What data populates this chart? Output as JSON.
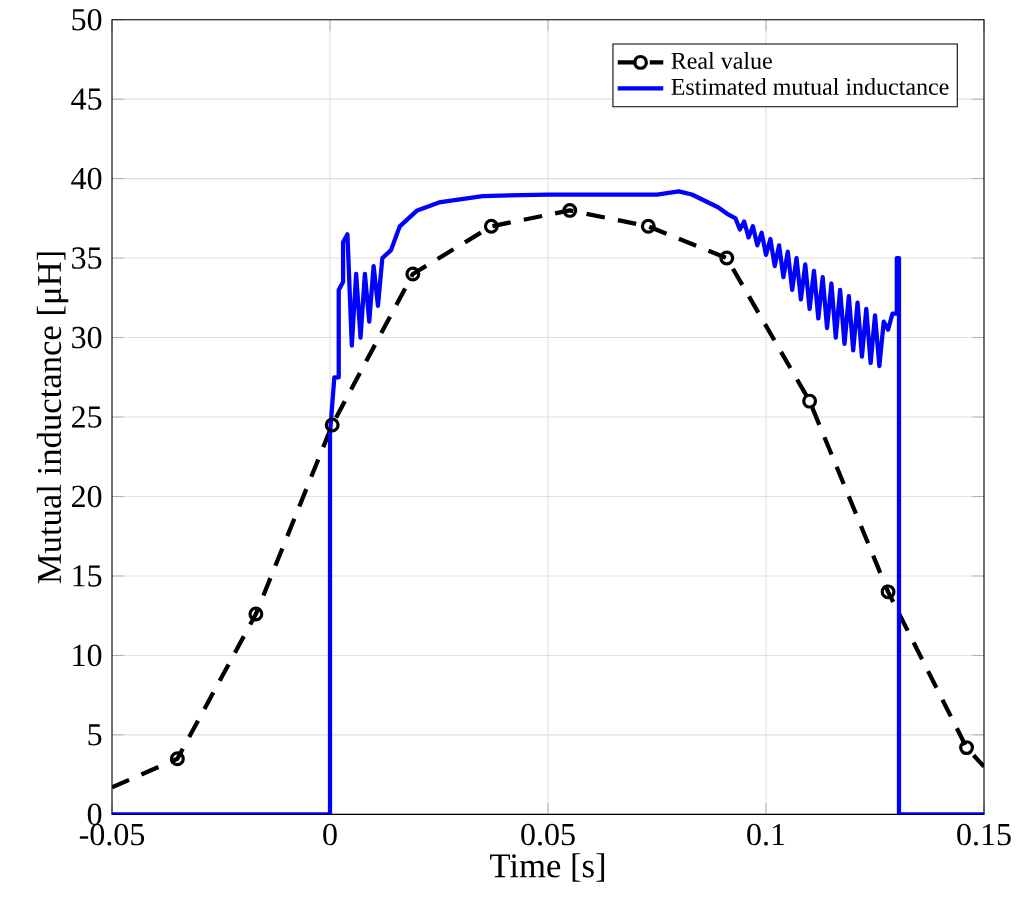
{
  "chart_data": {
    "type": "line",
    "xlabel": "Time [s]",
    "ylabel": "Mutual inductance [μH]",
    "xlim": [
      -0.05,
      0.15
    ],
    "xticks": [
      -0.05,
      0,
      0.05,
      0.1,
      0.15
    ],
    "ylim": [
      0,
      50
    ],
    "yticks": [
      0,
      5,
      10,
      15,
      20,
      25,
      30,
      35,
      40,
      45,
      50
    ],
    "grid": true,
    "legend": "top right",
    "series": [
      {
        "name": "Real value",
        "color": "#000000",
        "line_style": "dashed",
        "marker": "circle",
        "x": [
          -0.05,
          -0.035,
          -0.017,
          0.0005,
          0.019,
          0.037,
          0.055,
          0.073,
          0.091,
          0.11,
          0.128,
          0.146,
          0.15
        ],
        "values": [
          1.7,
          3.5,
          12.6,
          24.5,
          34,
          37,
          38,
          37,
          35,
          26,
          14,
          4.2,
          3
        ]
      },
      {
        "name": "Estimated mutual inductance",
        "color": "#0000ff",
        "line_style": "solid",
        "marker": "none",
        "x": [
          -0.05,
          0,
          0,
          0.001,
          0.002,
          0.002,
          0.003,
          0.003,
          0.004,
          0.005,
          0.006,
          0.007,
          0.008,
          0.009,
          0.01,
          0.011,
          0.012,
          0.014,
          0.016,
          0.018,
          0.02,
          0.025,
          0.035,
          0.05,
          0.075,
          0.08,
          0.083,
          0.086,
          0.089,
          0.091,
          0.093,
          0.094,
          0.095,
          0.096,
          0.097,
          0.098,
          0.099,
          0.1,
          0.101,
          0.102,
          0.103,
          0.104,
          0.105,
          0.106,
          0.107,
          0.108,
          0.109,
          0.11,
          0.111,
          0.112,
          0.113,
          0.114,
          0.115,
          0.116,
          0.117,
          0.118,
          0.119,
          0.12,
          0.121,
          0.122,
          0.123,
          0.124,
          0.125,
          0.126,
          0.127,
          0.128,
          0.129,
          0.13,
          0.13,
          0.1305,
          0.1305,
          0.15
        ],
        "values": [
          0,
          0,
          24,
          27.5,
          27.5,
          33,
          33.5,
          36,
          36.5,
          29.5,
          34,
          30,
          34,
          31,
          34.5,
          32,
          35,
          35.5,
          37,
          37.5,
          38,
          38.5,
          38.9,
          39,
          39,
          39.2,
          39,
          38.6,
          38.2,
          37.8,
          37.5,
          36.8,
          37.3,
          36.3,
          37,
          35.8,
          36.6,
          35.2,
          36.2,
          34.5,
          35.8,
          33.8,
          35.4,
          33,
          35,
          32.4,
          34.6,
          31.8,
          34.2,
          31.2,
          33.8,
          30.6,
          33.4,
          30,
          33,
          29.6,
          32.6,
          29.2,
          32.2,
          28.8,
          31.8,
          28.4,
          31.4,
          28.2,
          31,
          30.5,
          31.5,
          31.5,
          35,
          35,
          0,
          0
        ]
      }
    ]
  }
}
